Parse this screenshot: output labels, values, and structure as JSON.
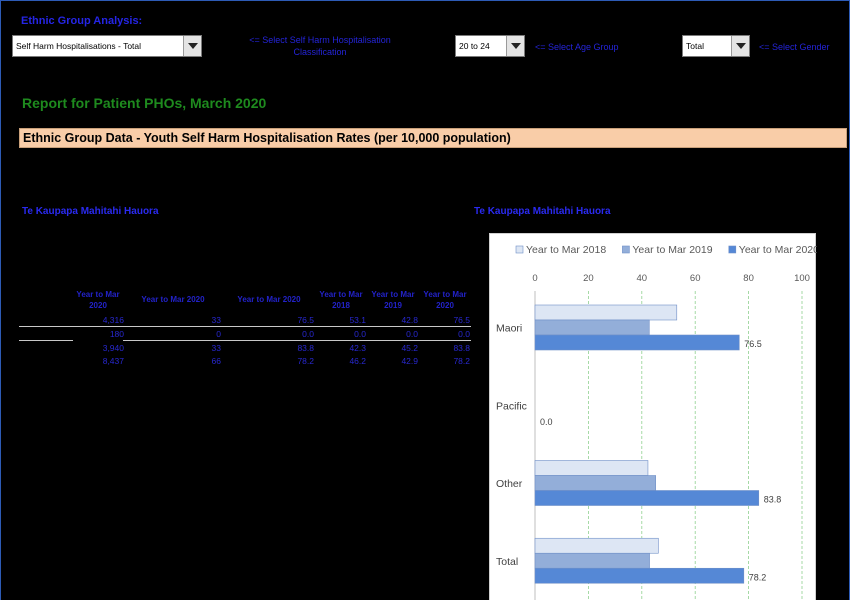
{
  "header": {
    "title": "Ethnic Group Analysis:",
    "classification": {
      "value": "Self Harm Hospitalisations - Total",
      "hint": "<= Select Self Harm Hospitalisation Classification"
    },
    "age_group": {
      "value": "20 to 24",
      "hint": "<= Select Age Group"
    },
    "gender": {
      "value": "Total",
      "hint": "<= Select Gender"
    }
  },
  "report_title": "Report for Patient PHOs, March 2020",
  "banner": "Ethnic Group Data - Youth Self Harm Hospitalisation Rates (per 10,000 population)",
  "left_section": {
    "title": "Te Kaupapa Mahitahi Hauora",
    "headers": [
      "Year to Mar 2020",
      "Year to Mar 2020",
      "Year to Mar 2020",
      "Year to Mar 2018",
      "Year to Mar 2019",
      "Year to Mar 2020"
    ],
    "rows": [
      [
        "4,316",
        "33",
        "76.5",
        "53.1",
        "42.8",
        "76.5"
      ],
      [
        "180",
        "0",
        "0.0",
        "0.0",
        "0.0",
        "0.0"
      ],
      [
        "3,940",
        "33",
        "83.8",
        "42.3",
        "45.2",
        "83.8"
      ],
      [
        "8,437",
        "66",
        "78.2",
        "46.2",
        "42.9",
        "78.2"
      ]
    ]
  },
  "right_section": {
    "title": "Te Kaupapa Mahitahi Hauora"
  },
  "chart_data": {
    "type": "bar",
    "orientation": "horizontal",
    "categories": [
      "Maori",
      "Pacific",
      "Other",
      "Total"
    ],
    "series": [
      {
        "name": "Year to Mar 2018",
        "values": [
          53.1,
          0.0,
          42.3,
          46.2
        ],
        "color": "#dde6f4"
      },
      {
        "name": "Year to Mar 2019",
        "values": [
          42.8,
          0.0,
          45.2,
          42.9
        ],
        "color": "#93aed9"
      },
      {
        "name": "Year to Mar 2020",
        "values": [
          76.5,
          0.0,
          83.8,
          78.2
        ],
        "color": "#5588d6"
      }
    ],
    "data_labels": [
      "76.5",
      "0.0",
      "83.8",
      "78.2"
    ],
    "xlim": [
      0,
      100
    ],
    "xticks": [
      "0",
      "20",
      "40",
      "60",
      "80",
      "100"
    ],
    "legend": "top",
    "grid": true
  }
}
